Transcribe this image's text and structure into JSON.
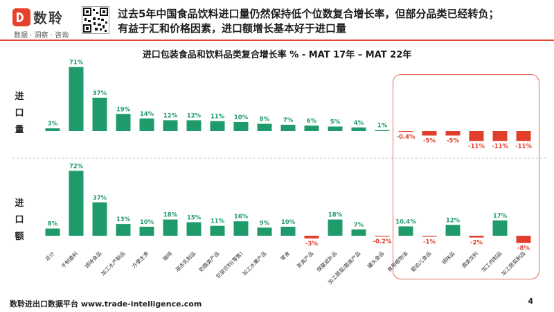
{
  "header": {
    "logo_name": "数聆",
    "logo_tagline": "数据 · 洞察 · 咨询",
    "headline_line1": "过去5年中国食品饮料进口量仍然保持低个位数复合增长率，但部分品类已经转负；",
    "headline_line2": "有益于汇和价格因素，进口额增长基本好于进口量"
  },
  "panels": {
    "top_label": "进口量",
    "bottom_label": "进口额"
  },
  "footer": {
    "source": "数聆进出口数据平台 www.trade-intelligence.com",
    "page_number": "4"
  },
  "colors": {
    "positive": "#1f9b6b",
    "negative": "#e0402b",
    "accent": "#e24b31",
    "highlight": "#e26a5a"
  },
  "chart_data": {
    "type": "bar",
    "title": "进口包装食品和饮料品类复合增长率 % - MAT 17年 – MAT 22年",
    "categories": [
      "总计",
      "干制香料",
      "调味食品",
      "加工水产制品",
      "方便主食",
      "咖啡",
      "液态乳制品",
      "奶酪类产品",
      "包装饮料(零售)",
      "加工水果产品",
      "零食",
      "茶类产品",
      "保健滋补品",
      "加工蔬菜/菌类产品",
      "罐头食品",
      "食用植物油",
      "婴幼儿食品",
      "调味品",
      "酒类饮料",
      "加工肉制品",
      "加工蔬菜制品"
    ],
    "series": [
      {
        "name": "进口量",
        "values": [
          3,
          71,
          37,
          19,
          14,
          12,
          12,
          11,
          10,
          8,
          7,
          6,
          5,
          4,
          1,
          -0.4,
          -5,
          -5,
          -11,
          -11,
          -11
        ],
        "labels": [
          "3%",
          "71%",
          "37%",
          "19%",
          "14%",
          "12%",
          "12%",
          "11%",
          "10%",
          "8%",
          "7%",
          "6%",
          "5%",
          "4%",
          "1%",
          "-0.4%",
          "-5%",
          "-5%",
          "-11%",
          "-11%",
          "-11%"
        ]
      },
      {
        "name": "进口额",
        "values": [
          8,
          72,
          37,
          13,
          10,
          18,
          15,
          11,
          16,
          9,
          10,
          -3,
          18,
          7,
          -0.2,
          10.4,
          -1,
          12,
          -2,
          17,
          -8
        ],
        "labels": [
          "8%",
          "72%",
          "37%",
          "13%",
          "10%",
          "18%",
          "15%",
          "11%",
          "16%",
          "9%",
          "10%",
          "-3%",
          "18%",
          "7%",
          "-0.2%",
          "10.4%",
          "-1%",
          "12%",
          "-2%",
          "17%",
          "-8%"
        ]
      }
    ],
    "highlight": "last six categories (negative import volume growth)"
  }
}
